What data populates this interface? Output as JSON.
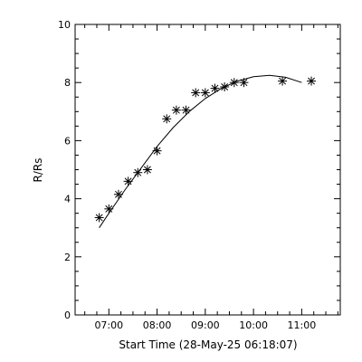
{
  "chart_data": {
    "type": "scatter",
    "xlabel": "Start Time (28-May-25 06:18:07)",
    "ylabel": "R/Rs",
    "x_unit": "time",
    "xlim": [
      "06:18",
      "11:48"
    ],
    "ylim": [
      0,
      10
    ],
    "x_ticks": [
      "07:00",
      "08:00",
      "09:00",
      "10:00",
      "11:00"
    ],
    "y_ticks": [
      0,
      2,
      4,
      6,
      8,
      10
    ],
    "grid": false,
    "legend": "none",
    "series": [
      {
        "marker": "asterisk",
        "points": [
          {
            "x": "06:48",
            "y": 3.35
          },
          {
            "x": "07:00",
            "y": 3.65
          },
          {
            "x": "07:12",
            "y": 4.15
          },
          {
            "x": "07:24",
            "y": 4.6
          },
          {
            "x": "07:36",
            "y": 4.9
          },
          {
            "x": "07:48",
            "y": 5.0
          },
          {
            "x": "08:00",
            "y": 5.65
          },
          {
            "x": "08:12",
            "y": 6.75
          },
          {
            "x": "08:24",
            "y": 7.05
          },
          {
            "x": "08:36",
            "y": 7.05
          },
          {
            "x": "08:48",
            "y": 7.65
          },
          {
            "x": "09:00",
            "y": 7.65
          },
          {
            "x": "09:12",
            "y": 7.8
          },
          {
            "x": "09:24",
            "y": 7.85
          },
          {
            "x": "09:36",
            "y": 8.0
          },
          {
            "x": "09:48",
            "y": 8.0
          },
          {
            "x": "10:36",
            "y": 8.05
          },
          {
            "x": "11:12",
            "y": 8.05
          }
        ]
      },
      {
        "style": "line",
        "points": [
          {
            "x": "06:48",
            "y": 3.0
          },
          {
            "x": "07:00",
            "y": 3.5
          },
          {
            "x": "07:20",
            "y": 4.3
          },
          {
            "x": "07:40",
            "y": 5.05
          },
          {
            "x": "08:00",
            "y": 5.8
          },
          {
            "x": "08:20",
            "y": 6.45
          },
          {
            "x": "08:40",
            "y": 7.0
          },
          {
            "x": "09:00",
            "y": 7.45
          },
          {
            "x": "09:20",
            "y": 7.8
          },
          {
            "x": "09:40",
            "y": 8.05
          },
          {
            "x": "10:00",
            "y": 8.2
          },
          {
            "x": "10:20",
            "y": 8.25
          },
          {
            "x": "10:40",
            "y": 8.18
          },
          {
            "x": "11:00",
            "y": 8.0
          }
        ]
      }
    ]
  }
}
